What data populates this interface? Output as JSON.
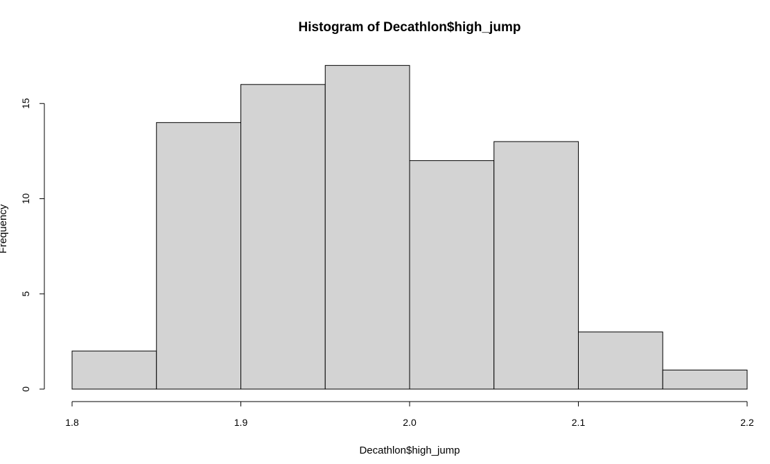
{
  "chart_data": {
    "type": "bar",
    "title": "Histogram of Decathlon$high_jump",
    "xlabel": "Decathlon$high_jump",
    "ylabel": "Frequency",
    "bins": [
      {
        "start": 1.8,
        "end": 1.85,
        "count": 2
      },
      {
        "start": 1.85,
        "end": 1.9,
        "count": 14
      },
      {
        "start": 1.9,
        "end": 1.95,
        "count": 16
      },
      {
        "start": 1.95,
        "end": 2.0,
        "count": 17
      },
      {
        "start": 2.0,
        "end": 2.05,
        "count": 12
      },
      {
        "start": 2.05,
        "end": 2.1,
        "count": 13
      },
      {
        "start": 2.1,
        "end": 2.15,
        "count": 3
      },
      {
        "start": 2.15,
        "end": 2.2,
        "count": 1
      }
    ],
    "xlim": [
      1.8,
      2.2
    ],
    "ylim": [
      0,
      17
    ],
    "x_ticks": [
      "1.8",
      "1.9",
      "2.0",
      "2.1",
      "2.2"
    ],
    "y_ticks": [
      "0",
      "5",
      "10",
      "15"
    ],
    "bar_color": "#d3d3d3",
    "edge_color": "#000000",
    "grid": false
  }
}
